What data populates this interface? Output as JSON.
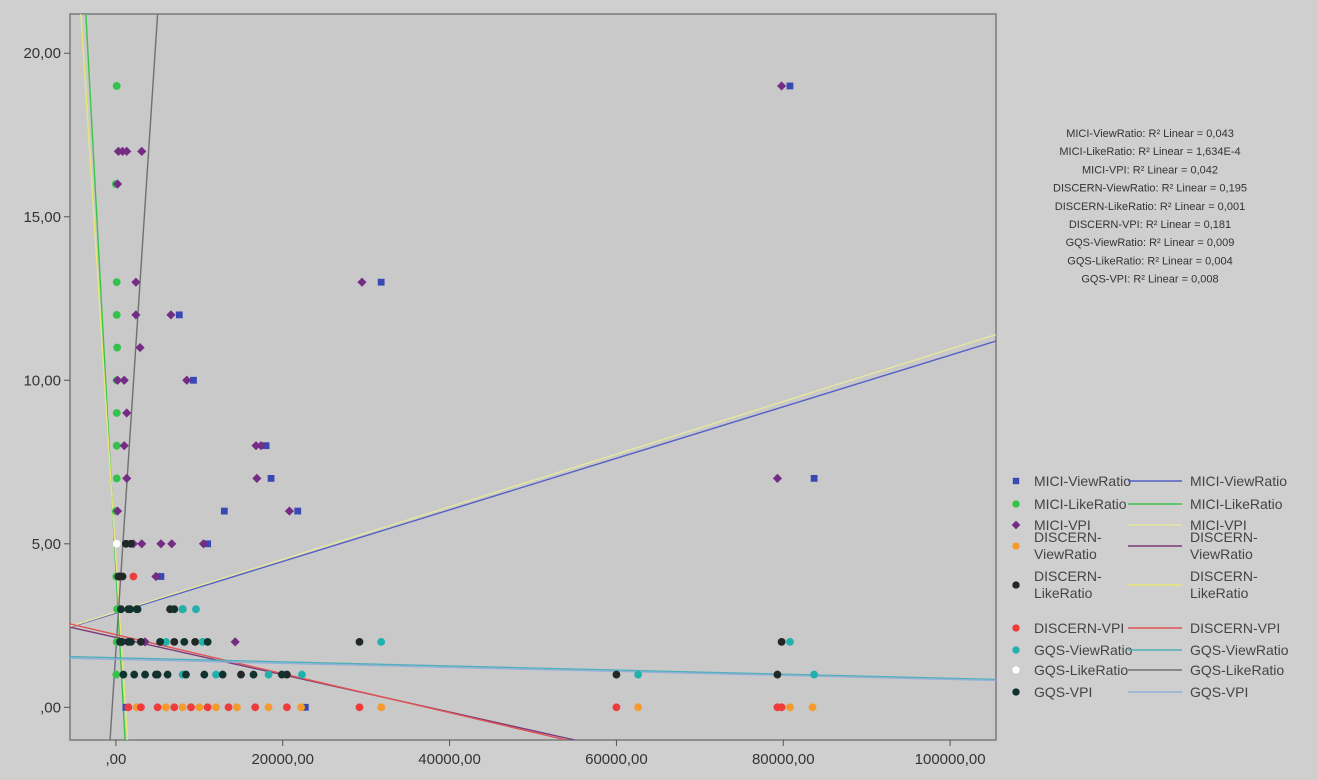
{
  "chart_data": {
    "type": "scatter",
    "title": "",
    "xlabel": "",
    "ylabel": "",
    "xlim": [
      -5500,
      105500
    ],
    "ylim": [
      -1.0,
      21.2
    ],
    "grid": false,
    "legend_placement": "right",
    "x_ticks": [
      {
        "value": 0,
        "label": ",00"
      },
      {
        "value": 20000,
        "label": "20000,00"
      },
      {
        "value": 40000,
        "label": "40000,00"
      },
      {
        "value": 60000,
        "label": "60000,00"
      },
      {
        "value": 80000,
        "label": "80000,00"
      },
      {
        "value": 100000,
        "label": "100000,00"
      }
    ],
    "y_ticks": [
      {
        "value": 0,
        "label": ",00"
      },
      {
        "value": 5,
        "label": "5,00"
      },
      {
        "value": 10,
        "label": "10,00"
      },
      {
        "value": 15,
        "label": "15,00"
      },
      {
        "value": 20,
        "label": "20,00"
      }
    ],
    "r2_annotations": [
      "MICI-ViewRatio: R² Linear = 0,043",
      "MICI-LikeRatio: R² Linear = 1,634E-4",
      "MICI-VPI: R² Linear = 0,042",
      "DISCERN-ViewRatio: R² Linear = 0,195",
      "DISCERN-LikeRatio: R² Linear = 0,001",
      "DISCERN-VPI: R² Linear = 0,181",
      "GQS-ViewRatio: R² Linear = 0,009",
      "GQS-LikeRatio: R² Linear = 0,004",
      "GQS-VPI: R² Linear = 0,008"
    ],
    "series": [
      {
        "name": "MICI-ViewRatio",
        "marker": "square",
        "color": "#3a48b4",
        "points": [
          [
            80800,
            19
          ],
          [
            31800,
            13
          ],
          [
            7600,
            12
          ],
          [
            9300,
            10
          ],
          [
            18000,
            8
          ],
          [
            18600,
            7
          ],
          [
            83700,
            7
          ],
          [
            13000,
            6
          ],
          [
            21800,
            6
          ],
          [
            11000,
            5
          ],
          [
            5400,
            4
          ],
          [
            22700,
            0
          ],
          [
            1200,
            0
          ]
        ]
      },
      {
        "name": "MICI-LikeRatio",
        "marker": "circle",
        "color": "#33c24a",
        "points": [
          [
            100,
            19
          ],
          [
            0,
            16
          ],
          [
            100,
            13
          ],
          [
            100,
            12
          ],
          [
            150,
            11
          ],
          [
            100,
            10
          ],
          [
            100,
            9
          ],
          [
            100,
            8
          ],
          [
            100,
            7
          ],
          [
            0,
            6
          ],
          [
            100,
            5
          ],
          [
            50,
            4
          ],
          [
            150,
            3
          ],
          [
            100,
            2
          ],
          [
            50,
            1
          ]
        ]
      },
      {
        "name": "MICI-VPI",
        "marker": "diamond",
        "color": "#742c84",
        "points": [
          [
            79800,
            19
          ],
          [
            300,
            17
          ],
          [
            800,
            17
          ],
          [
            1300,
            17
          ],
          [
            3100,
            17
          ],
          [
            200,
            16
          ],
          [
            2400,
            13
          ],
          [
            29500,
            13
          ],
          [
            6600,
            12
          ],
          [
            2400,
            12
          ],
          [
            2900,
            11
          ],
          [
            1000,
            10
          ],
          [
            200,
            10
          ],
          [
            8500,
            10
          ],
          [
            1300,
            9
          ],
          [
            1000,
            8
          ],
          [
            16800,
            8
          ],
          [
            17400,
            8
          ],
          [
            1300,
            7
          ],
          [
            16900,
            7
          ],
          [
            79300,
            7
          ],
          [
            200,
            6
          ],
          [
            20800,
            6
          ],
          [
            2100,
            5
          ],
          [
            3100,
            5
          ],
          [
            5400,
            5
          ],
          [
            6700,
            5
          ],
          [
            10500,
            5
          ],
          [
            4800,
            4
          ],
          [
            500,
            4
          ],
          [
            14300,
            2
          ],
          [
            3500,
            2
          ],
          [
            700,
            2
          ]
        ]
      },
      {
        "name": "DISCERN-ViewRatio",
        "marker": "circle",
        "color": "#f59a2c",
        "points": [
          [
            83500,
            0
          ],
          [
            80800,
            0
          ],
          [
            62600,
            0
          ],
          [
            31800,
            0
          ],
          [
            22200,
            0
          ],
          [
            18300,
            0
          ],
          [
            14500,
            0
          ],
          [
            12000,
            0
          ],
          [
            10000,
            0
          ],
          [
            8000,
            0
          ],
          [
            6000,
            0
          ],
          [
            2500,
            0
          ]
        ]
      },
      {
        "name": "DISCERN-LikeRatio",
        "marker": "circle",
        "color": "#222828",
        "points": [
          [
            1200,
            5
          ],
          [
            1800,
            5
          ],
          [
            300,
            4
          ],
          [
            800,
            4
          ],
          [
            1500,
            3
          ],
          [
            2500,
            3
          ],
          [
            6500,
            3
          ],
          [
            8000,
            3
          ],
          [
            500,
            2
          ],
          [
            1500,
            2
          ],
          [
            3000,
            2
          ],
          [
            7000,
            2
          ],
          [
            9500,
            2
          ],
          [
            29200,
            2
          ],
          [
            79800,
            2
          ],
          [
            5000,
            1
          ],
          [
            15000,
            1
          ],
          [
            20500,
            1
          ],
          [
            60000,
            1
          ],
          [
            79300,
            1
          ]
        ]
      },
      {
        "name": "DISCERN-VPI",
        "marker": "circle",
        "color": "#ee3c3c",
        "points": [
          [
            2100,
            4
          ],
          [
            79300,
            0
          ],
          [
            79800,
            0
          ],
          [
            60000,
            0
          ],
          [
            29200,
            0
          ],
          [
            20500,
            0
          ],
          [
            16700,
            0
          ],
          [
            13500,
            0
          ],
          [
            11000,
            0
          ],
          [
            9000,
            0
          ],
          [
            7000,
            0
          ],
          [
            5000,
            0
          ],
          [
            3000,
            0
          ],
          [
            1500,
            0
          ]
        ]
      },
      {
        "name": "GQS-ViewRatio",
        "marker": "circle",
        "color": "#21b1ad",
        "points": [
          [
            9600,
            3
          ],
          [
            8000,
            3
          ],
          [
            80800,
            2
          ],
          [
            31800,
            2
          ],
          [
            10400,
            2
          ],
          [
            6000,
            2
          ],
          [
            83700,
            1
          ],
          [
            62600,
            1
          ],
          [
            22300,
            1
          ],
          [
            18300,
            1
          ],
          [
            12000,
            1
          ],
          [
            8000,
            1
          ]
        ]
      },
      {
        "name": "GQS-LikeRatio",
        "marker": "circle",
        "color": "#ffffff",
        "points": [
          [
            100,
            5
          ]
        ]
      },
      {
        "name": "GQS-VPI",
        "marker": "circle",
        "color": "#10332e",
        "points": [
          [
            600,
            3
          ],
          [
            1700,
            3
          ],
          [
            2600,
            3
          ],
          [
            7000,
            3
          ],
          [
            700,
            2
          ],
          [
            1800,
            2
          ],
          [
            5300,
            2
          ],
          [
            8200,
            2
          ],
          [
            11000,
            2
          ],
          [
            900,
            1
          ],
          [
            2200,
            1
          ],
          [
            3500,
            1
          ],
          [
            4800,
            1
          ],
          [
            6200,
            1
          ],
          [
            8400,
            1
          ],
          [
            10600,
            1
          ],
          [
            12800,
            1
          ],
          [
            16500,
            1
          ],
          [
            19900,
            1
          ]
        ]
      }
    ],
    "fit_lines": [
      {
        "name": "MICI-ViewRatio",
        "color": "#5460c4",
        "x": [
          -5500,
          105500
        ],
        "y": [
          2.45,
          11.2
        ]
      },
      {
        "name": "MICI-LikeRatio",
        "color": "#3cc34c",
        "x": [
          -3600,
          1100
        ],
        "y": [
          21.2,
          -1.0
        ]
      },
      {
        "name": "MICI-VPI",
        "color": "#e6e6a0",
        "x": [
          -5500,
          105500
        ],
        "y": [
          2.47,
          11.4
        ]
      },
      {
        "name": "DISCERN-ViewRatio",
        "color": "#7a3878",
        "x": [
          -5500,
          55000
        ],
        "y": [
          2.45,
          -1.0
        ]
      },
      {
        "name": "DISCERN-LikeRatio",
        "color": "#e6e67a",
        "x": [
          -4200,
          1400
        ],
        "y": [
          21.2,
          -1.0
        ]
      },
      {
        "name": "DISCERN-VPI",
        "color": "#e05454",
        "x": [
          -5500,
          54000
        ],
        "y": [
          2.55,
          -1.0
        ]
      },
      {
        "name": "GQS-ViewRatio",
        "color": "#50b0b8",
        "x": [
          -5500,
          105500
        ],
        "y": [
          1.55,
          0.85
        ]
      },
      {
        "name": "GQS-LikeRatio",
        "color": "#707070",
        "x": [
          -700,
          5000
        ],
        "y": [
          -1.0,
          21.2
        ]
      },
      {
        "name": "GQS-VPI",
        "color": "#90b0d8",
        "x": [
          -5500,
          105500
        ],
        "y": [
          1.5,
          0.82
        ]
      }
    ]
  }
}
